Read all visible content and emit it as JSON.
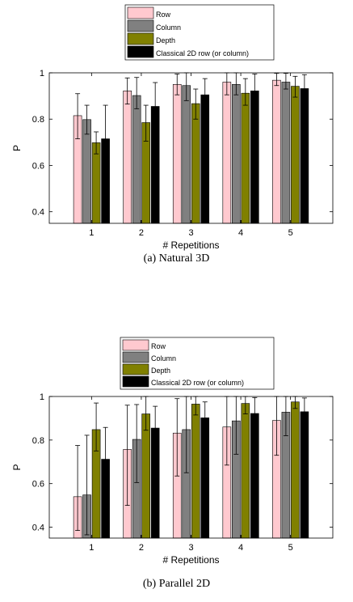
{
  "chart_data": [
    {
      "type": "bar",
      "caption": "(a) Natural 3D",
      "categories": [
        "1",
        "2",
        "3",
        "4",
        "5"
      ],
      "series": [
        {
          "name": "Row",
          "color": "#ffc9cf",
          "values": [
            0.815,
            0.922,
            0.95,
            0.96,
            0.968
          ],
          "err_low": [
            0.715,
            0.865,
            0.905,
            0.905,
            0.945
          ],
          "err_high": [
            0.91,
            0.978,
            0.995,
            1.0,
            0.998
          ]
        },
        {
          "name": "Column",
          "color": "#808080",
          "values": [
            0.798,
            0.902,
            0.945,
            0.95,
            0.96
          ],
          "err_low": [
            0.735,
            0.845,
            0.88,
            0.905,
            0.93
          ],
          "err_high": [
            0.86,
            0.98,
            1.0,
            1.0,
            0.998
          ]
        },
        {
          "name": "Depth",
          "color": "#808000",
          "values": [
            0.698,
            0.785,
            0.867,
            0.912,
            0.942
          ],
          "err_low": [
            0.65,
            0.705,
            0.8,
            0.86,
            0.895
          ],
          "err_high": [
            0.745,
            0.86,
            0.93,
            0.975,
            0.985
          ]
        },
        {
          "name": "Classical 2D row (or column)",
          "color": "#000000",
          "values": [
            0.715,
            0.855,
            0.905,
            0.922,
            0.932
          ],
          "err_low": [
            0.545,
            0.655,
            0.8,
            0.85,
            0.87
          ],
          "err_high": [
            0.86,
            0.958,
            0.975,
            0.995,
            0.992
          ]
        }
      ],
      "xlabel": "# Repetitions",
      "ylabel": "P",
      "ylim": [
        0.35,
        1.0
      ],
      "yticks": [
        "0.4",
        "0.6",
        "0.8",
        "1"
      ],
      "grid": false,
      "legend": "top-center"
    },
    {
      "type": "bar",
      "caption": "(b) Parallel 2D",
      "categories": [
        "1",
        "2",
        "3",
        "4",
        "5"
      ],
      "series": [
        {
          "name": "Row",
          "color": "#ffc9cf",
          "values": [
            0.54,
            0.757,
            0.832,
            0.86,
            0.89
          ],
          "err_low": [
            0.385,
            0.5,
            0.635,
            0.685,
            0.73
          ],
          "err_high": [
            0.775,
            0.96,
            0.99,
            1.0,
            1.0
          ]
        },
        {
          "name": "Column",
          "color": "#808080",
          "values": [
            0.548,
            0.803,
            0.848,
            0.888,
            0.928
          ],
          "err_low": [
            0.365,
            0.605,
            0.65,
            0.735,
            0.82
          ],
          "err_high": [
            0.822,
            0.963,
            1.0,
            1.0,
            1.0
          ]
        },
        {
          "name": "Depth",
          "color": "#808000",
          "values": [
            0.848,
            0.92,
            0.965,
            0.968,
            0.975
          ],
          "err_low": [
            0.75,
            0.845,
            0.915,
            0.92,
            0.945
          ],
          "err_high": [
            0.97,
            1.0,
            1.0,
            1.0,
            1.0
          ]
        },
        {
          "name": "Classical 2D row (or column)",
          "color": "#000000",
          "values": [
            0.712,
            0.855,
            0.902,
            0.922,
            0.93
          ],
          "err_low": [
            0.565,
            0.72,
            0.81,
            0.835,
            0.86
          ],
          "err_high": [
            0.858,
            0.955,
            0.975,
            0.995,
            0.993
          ]
        }
      ],
      "xlabel": "# Repetitions",
      "ylabel": "P",
      "ylim": [
        0.35,
        1.0
      ],
      "yticks": [
        "0.4",
        "0.6",
        "0.8",
        "1"
      ],
      "grid": false,
      "legend": "top-center"
    }
  ]
}
